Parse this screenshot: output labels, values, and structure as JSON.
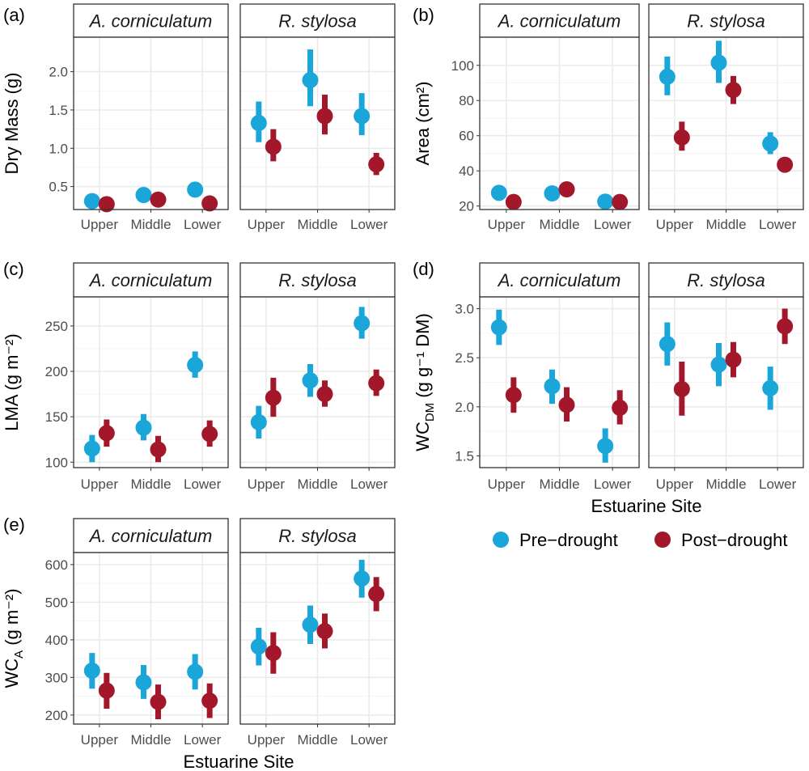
{
  "colors": {
    "pre": "#1ba6d9",
    "post": "#a3172b",
    "grid": "#ebebeb",
    "frame": "#333333",
    "strip_fill": "#ffffff"
  },
  "categories": [
    "Upper",
    "Middle",
    "Lower"
  ],
  "legend": {
    "placement": "right",
    "items": [
      "Pre−drought",
      "Post−drought"
    ]
  },
  "shared_xlabel": "Estuarine Site",
  "chart_data": [
    {
      "type": "scatter",
      "tag": "(a)",
      "ylabel": "Dry Mass (g)",
      "ylim": [
        0.2,
        2.45
      ],
      "yticks": [
        0.5,
        1.0,
        1.5,
        2.0
      ],
      "ytick_labels": [
        "0.5",
        "1.0",
        "1.5",
        "2.0"
      ],
      "facets": [
        "A. corniculatum",
        "R. stylosa"
      ],
      "series": [
        {
          "name": "Pre−drought",
          "data": [
            [
              [
                0.31,
                0.29,
                0.33
              ],
              [
                0.39,
                0.36,
                0.42
              ],
              [
                0.46,
                0.43,
                0.49
              ]
            ],
            [
              [
                1.33,
                1.08,
                1.61
              ],
              [
                1.89,
                1.55,
                2.29
              ],
              [
                1.42,
                1.17,
                1.72
              ]
            ]
          ]
        },
        {
          "name": "Post−drought",
          "data": [
            [
              [
                0.27,
                0.25,
                0.29
              ],
              [
                0.33,
                0.31,
                0.35
              ],
              [
                0.28,
                0.26,
                0.3
              ]
            ],
            [
              [
                1.02,
                0.83,
                1.25
              ],
              [
                1.42,
                1.18,
                1.7
              ],
              [
                0.79,
                0.65,
                0.94
              ]
            ]
          ]
        }
      ]
    },
    {
      "type": "scatter",
      "tag": "(b)",
      "ylabel": "Area (cm²)",
      "ylim": [
        18,
        116
      ],
      "yticks": [
        20,
        40,
        60,
        80,
        100
      ],
      "ytick_labels": [
        "20",
        "40",
        "60",
        "80",
        "100"
      ],
      "facets": [
        "A. corniculatum",
        "R. stylosa"
      ],
      "series": [
        {
          "name": "Pre−drought",
          "data": [
            [
              [
                27.5,
                25.5,
                29.5
              ],
              [
                27.2,
                25.2,
                29.2
              ],
              [
                22.5,
                20.8,
                24.5
              ]
            ],
            [
              [
                93.5,
                83.0,
                105.0
              ],
              [
                101.5,
                90.0,
                114.0
              ],
              [
                55.5,
                49.5,
                62.0
              ]
            ]
          ]
        },
        {
          "name": "Post−drought",
          "data": [
            [
              [
                22.3,
                20.8,
                24.0
              ],
              [
                29.5,
                27.5,
                31.5
              ],
              [
                22.3,
                20.8,
                24.0
              ]
            ],
            [
              [
                59.0,
                51.5,
                68.0
              ],
              [
                86.0,
                78.0,
                94.0
              ],
              [
                43.5,
                41.0,
                46.0
              ]
            ]
          ]
        }
      ]
    },
    {
      "type": "scatter",
      "tag": "(c)",
      "ylabel": "LMA (g m⁻²)",
      "ylim": [
        94,
        282
      ],
      "yticks": [
        100,
        150,
        200,
        250
      ],
      "ytick_labels": [
        "100",
        "150",
        "200",
        "250"
      ],
      "facets": [
        "A. corniculatum",
        "R. stylosa"
      ],
      "series": [
        {
          "name": "Pre−drought",
          "data": [
            [
              [
                115,
                100,
                130
              ],
              [
                138,
                124,
                153
              ],
              [
                207,
                193,
                222
              ]
            ],
            [
              [
                144,
                126,
                162
              ],
              [
                190,
                172,
                208
              ],
              [
                253,
                236,
                271
              ]
            ]
          ]
        },
        {
          "name": "Post−drought",
          "data": [
            [
              [
                132,
                117,
                147
              ],
              [
                114,
                100,
                129
              ],
              [
                131,
                117,
                146
              ]
            ],
            [
              [
                171,
                150,
                193
              ],
              [
                175,
                161,
                190
              ],
              [
                187,
                173,
                202
              ]
            ]
          ]
        }
      ]
    },
    {
      "type": "scatter",
      "tag": "(d)",
      "ylabel": "WC_DM (g g⁻¹ DM)",
      "xlabel": "Estuarine Site",
      "ylim": [
        1.38,
        3.12
      ],
      "yticks": [
        1.5,
        2.0,
        2.5,
        3.0
      ],
      "ytick_labels": [
        "1.5",
        "2.0",
        "2.5",
        "3.0"
      ],
      "facets": [
        "A. corniculatum",
        "R. stylosa"
      ],
      "series": [
        {
          "name": "Pre−drought",
          "data": [
            [
              [
                2.81,
                2.63,
                2.99
              ],
              [
                2.21,
                2.03,
                2.38
              ],
              [
                1.6,
                1.43,
                1.78
              ]
            ],
            [
              [
                2.64,
                2.42,
                2.86
              ],
              [
                2.43,
                2.21,
                2.65
              ],
              [
                2.19,
                1.97,
                2.41
              ]
            ]
          ]
        },
        {
          "name": "Post−drought",
          "data": [
            [
              [
                2.12,
                1.94,
                2.3
              ],
              [
                2.02,
                1.85,
                2.2
              ],
              [
                1.99,
                1.82,
                2.17
              ]
            ],
            [
              [
                2.18,
                1.91,
                2.46
              ],
              [
                2.48,
                2.3,
                2.66
              ],
              [
                2.82,
                2.64,
                3.0
              ]
            ]
          ]
        }
      ]
    },
    {
      "type": "scatter",
      "tag": "(e)",
      "ylabel": "WC_A (g m⁻²)",
      "xlabel": "Estuarine Site",
      "ylim": [
        176,
        632
      ],
      "yticks": [
        200,
        300,
        400,
        500,
        600
      ],
      "ytick_labels": [
        "200",
        "300",
        "400",
        "500",
        "600"
      ],
      "facets": [
        "A. corniculatum",
        "R. stylosa"
      ],
      "series": [
        {
          "name": "Pre−drought",
          "data": [
            [
              [
                318,
                270,
                365
              ],
              [
                287,
                243,
                333
              ],
              [
                315,
                268,
                362
              ]
            ],
            [
              [
                382,
                332,
                432
              ],
              [
                440,
                389,
                491
              ],
              [
                563,
                512,
                613
              ]
            ]
          ]
        },
        {
          "name": "Post−drought",
          "data": [
            [
              [
                265,
                217,
                312
              ],
              [
                235,
                189,
                281
              ],
              [
                238,
                192,
                284
              ]
            ],
            [
              [
                365,
                310,
                420
              ],
              [
                423,
                377,
                470
              ],
              [
                522,
                476,
                567
              ]
            ]
          ]
        }
      ]
    }
  ]
}
